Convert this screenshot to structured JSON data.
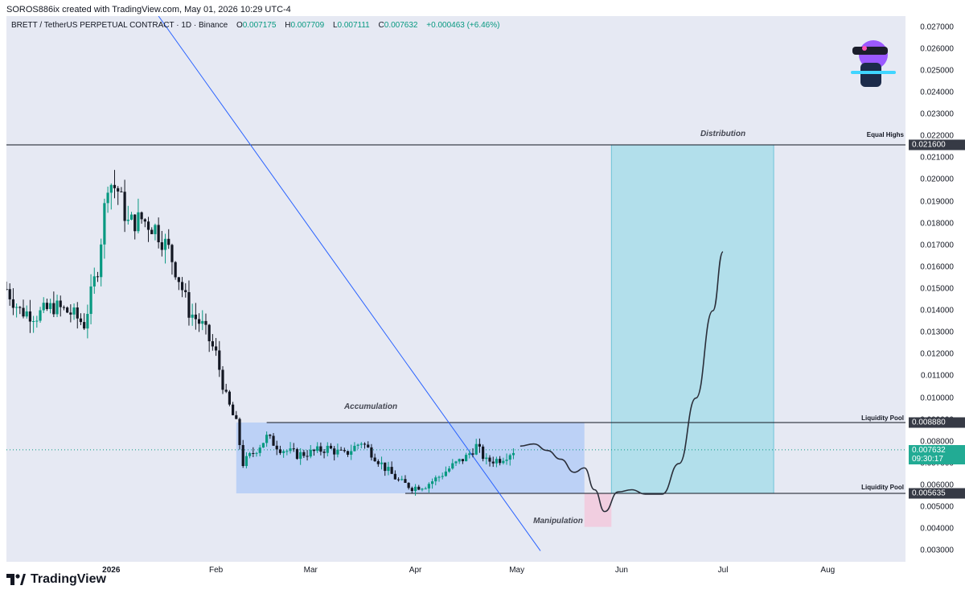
{
  "header": {
    "text": "SOROS886ix created with TradingView.com, May 01, 2026 10:29 UTC-4"
  },
  "legend": {
    "symbol": "BRETT / TetherUS PERPETUAL CONTRACT · 1D · Binance",
    "o_key": "O",
    "o_val": "0.007175",
    "h_key": "H",
    "h_val": "0.007709",
    "l_key": "L",
    "l_val": "0.007111",
    "c_key": "C",
    "c_val": "0.007632",
    "change": "+0.000463 (+6.46%)"
  },
  "annotations": {
    "accumulation": "Accumulation",
    "distribution": "Distribution",
    "manipulation": "Manipulation",
    "equal_highs": "Equal Highs",
    "liquidity_pool_top": "Liquidity Pool",
    "liquidity_pool_bottom": "Liquidity Pool"
  },
  "price_badges": {
    "equal_highs": "0.021600",
    "liquidity_top": "0.008880",
    "last_price": "0.007632",
    "countdown": "09:30:17",
    "liquidity_bottom": "0.005635"
  },
  "colors": {
    "up": "#089981",
    "down": "#131722",
    "trendline": "#2962ff",
    "accumulation_box": "#b4ccf6",
    "distribution_box": "#a8dde9",
    "manipulation_box": "#f2c9dc",
    "badge_dark": "#363a45",
    "badge_green": "#22ab94"
  },
  "logo": {
    "text": "TradingView"
  },
  "chart_data": {
    "type": "candlestick",
    "x_axis_labels": [
      "2026",
      "Feb",
      "Mar",
      "Apr",
      "May",
      "Jun",
      "Jul",
      "Aug"
    ],
    "y_ticks": [
      "0.027000",
      "0.026000",
      "0.025000",
      "0.024000",
      "0.023000",
      "0.022000",
      "0.021000",
      "0.020000",
      "0.019000",
      "0.018000",
      "0.017000",
      "0.016000",
      "0.015000",
      "0.014000",
      "0.013000",
      "0.012000",
      "0.011000",
      "0.010000",
      "0.009000",
      "0.008000",
      "0.007000",
      "0.006000",
      "0.005000",
      "0.004000",
      "0.003000"
    ],
    "ylim": [
      0.0025,
      0.0275
    ],
    "xlim": [
      "2025-12-01",
      "2026-08-24"
    ],
    "close_series_approx": [
      [
        "2025-12-01",
        0.015
      ],
      [
        "2025-12-05",
        0.014
      ],
      [
        "2025-12-10",
        0.0138
      ],
      [
        "2025-12-15",
        0.0142
      ],
      [
        "2025-12-20",
        0.0139
      ],
      [
        "2025-12-24",
        0.0134
      ],
      [
        "2025-12-28",
        0.016
      ],
      [
        "2025-12-31",
        0.02
      ],
      [
        "2026-01-03",
        0.0195
      ],
      [
        "2026-01-06",
        0.018
      ],
      [
        "2026-01-10",
        0.0182
      ],
      [
        "2026-01-14",
        0.0178
      ],
      [
        "2026-01-18",
        0.0168
      ],
      [
        "2026-01-21",
        0.0155
      ],
      [
        "2026-01-24",
        0.014
      ],
      [
        "2026-01-28",
        0.0133
      ],
      [
        "2026-02-01",
        0.012
      ],
      [
        "2026-02-04",
        0.01
      ],
      [
        "2026-02-07",
        0.0088
      ],
      [
        "2026-02-09",
        0.007
      ],
      [
        "2026-02-12",
        0.0075
      ],
      [
        "2026-02-16",
        0.0082
      ],
      [
        "2026-02-20",
        0.0077
      ],
      [
        "2026-02-25",
        0.0074
      ],
      [
        "2026-03-01",
        0.0075
      ],
      [
        "2026-03-06",
        0.0077
      ],
      [
        "2026-03-11",
        0.0074
      ],
      [
        "2026-03-16",
        0.008
      ],
      [
        "2026-03-19",
        0.0075
      ],
      [
        "2026-03-23",
        0.0068
      ],
      [
        "2026-03-27",
        0.0062
      ],
      [
        "2026-03-31",
        0.0059
      ],
      [
        "2026-04-04",
        0.006
      ],
      [
        "2026-04-08",
        0.0064
      ],
      [
        "2026-04-12",
        0.0069
      ],
      [
        "2026-04-16",
        0.0073
      ],
      [
        "2026-04-19",
        0.0078
      ],
      [
        "2026-04-22",
        0.0071
      ],
      [
        "2026-04-26",
        0.0072
      ],
      [
        "2026-04-30",
        0.0076
      ],
      [
        "2026-05-01",
        0.007632
      ]
    ],
    "projection_path_approx": [
      [
        "2026-05-02",
        0.0078
      ],
      [
        "2026-05-06",
        0.0079
      ],
      [
        "2026-05-10",
        0.0076
      ],
      [
        "2026-05-14",
        0.0072
      ],
      [
        "2026-05-18",
        0.0066
      ],
      [
        "2026-05-21",
        0.0068
      ],
      [
        "2026-05-24",
        0.0058
      ],
      [
        "2026-05-27",
        0.0048
      ],
      [
        "2026-05-31",
        0.0057
      ],
      [
        "2026-06-04",
        0.0058
      ],
      [
        "2026-06-08",
        0.0056
      ],
      [
        "2026-06-13",
        0.0056
      ],
      [
        "2026-06-18",
        0.007
      ],
      [
        "2026-06-23",
        0.01
      ],
      [
        "2026-06-28",
        0.014
      ],
      [
        "2026-07-01",
        0.0167
      ]
    ],
    "levels": {
      "equal_highs": 0.0216,
      "liquidity_pool_top": 0.00888,
      "liquidity_pool_bottom": 0.005635,
      "last": 0.007632
    },
    "zones": {
      "accumulation": {
        "x": [
          "2026-02-07",
          "2026-05-21"
        ],
        "y": [
          0.005635,
          0.00888
        ]
      },
      "manipulation": {
        "x": [
          "2026-05-21",
          "2026-05-29"
        ],
        "y": [
          0.0041,
          0.005635
        ]
      },
      "distribution": {
        "x": [
          "2026-05-29",
          "2026-07-16"
        ],
        "y": [
          0.005635,
          0.0216
        ]
      }
    },
    "trendline": [
      [
        "2026-01-15",
        0.0275
      ],
      [
        "2026-05-08",
        0.003
      ]
    ]
  }
}
